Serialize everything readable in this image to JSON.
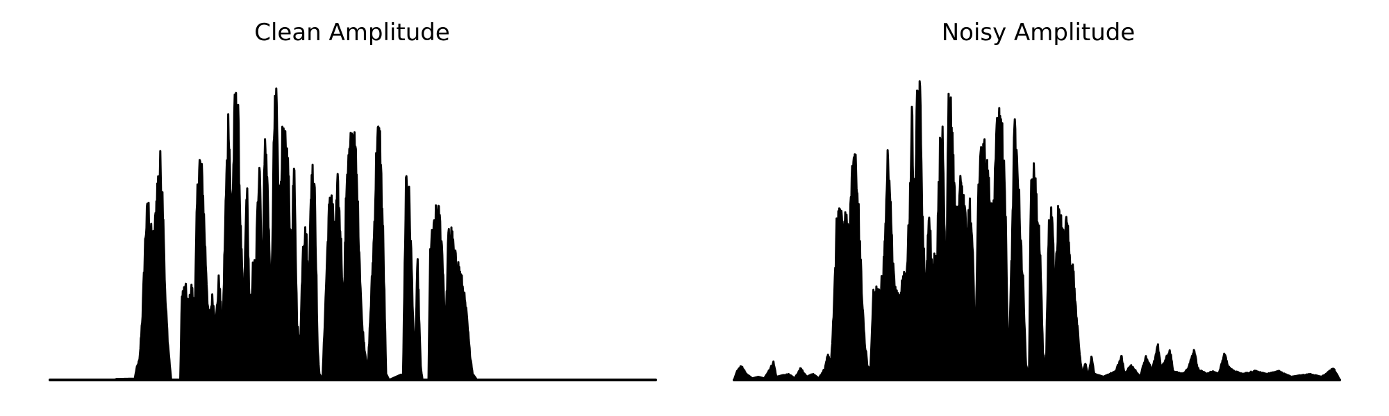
{
  "chart_data": [
    {
      "type": "area",
      "title": "Clean Amplitude",
      "xlabel": "",
      "ylabel": "",
      "axes_visible": false,
      "grid": false,
      "color": "#000000",
      "ylim": [
        0,
        1
      ],
      "envelope": [
        [
          0.0,
          0.0
        ],
        [
          0.08,
          0.0
        ],
        [
          0.105,
          0.0
        ],
        [
          0.11,
          0.003
        ],
        [
          0.14,
          0.004
        ],
        [
          0.143,
          0.04
        ],
        [
          0.148,
          0.07
        ],
        [
          0.153,
          0.24
        ],
        [
          0.158,
          0.52
        ],
        [
          0.162,
          0.6
        ],
        [
          0.167,
          0.5
        ],
        [
          0.172,
          0.48
        ],
        [
          0.177,
          0.66
        ],
        [
          0.182,
          0.74
        ],
        [
          0.187,
          0.6
        ],
        [
          0.19,
          0.3
        ],
        [
          0.195,
          0.12
        ],
        [
          0.2,
          0.0
        ],
        [
          0.215,
          0.0
        ],
        [
          0.218,
          0.3
        ],
        [
          0.224,
          0.31
        ],
        [
          0.229,
          0.25
        ],
        [
          0.234,
          0.32
        ],
        [
          0.239,
          0.22
        ],
        [
          0.243,
          0.62
        ],
        [
          0.247,
          0.75
        ],
        [
          0.252,
          0.68
        ],
        [
          0.257,
          0.42
        ],
        [
          0.262,
          0.2
        ],
        [
          0.268,
          0.28
        ],
        [
          0.274,
          0.2
        ],
        [
          0.279,
          0.35
        ],
        [
          0.285,
          0.16
        ],
        [
          0.29,
          0.6
        ],
        [
          0.295,
          0.93
        ],
        [
          0.3,
          0.5
        ],
        [
          0.305,
          0.92
        ],
        [
          0.31,
          0.95
        ],
        [
          0.315,
          0.5
        ],
        [
          0.32,
          0.22
        ],
        [
          0.325,
          0.69
        ],
        [
          0.33,
          0.2
        ],
        [
          0.335,
          0.38
        ],
        [
          0.34,
          0.4
        ],
        [
          0.346,
          0.8
        ],
        [
          0.35,
          0.35
        ],
        [
          0.355,
          0.82
        ],
        [
          0.36,
          0.64
        ],
        [
          0.365,
          0.2
        ],
        [
          0.37,
          0.86
        ],
        [
          0.374,
          0.998
        ],
        [
          0.378,
          0.52
        ],
        [
          0.383,
          0.81
        ],
        [
          0.388,
          0.8
        ],
        [
          0.393,
          0.75
        ],
        [
          0.398,
          0.4
        ],
        [
          0.403,
          0.73
        ],
        [
          0.408,
          0.2
        ],
        [
          0.413,
          0.1
        ],
        [
          0.418,
          0.5
        ],
        [
          0.423,
          0.5
        ],
        [
          0.427,
          0.3
        ],
        [
          0.432,
          0.72
        ],
        [
          0.437,
          0.7
        ],
        [
          0.442,
          0.1
        ],
        [
          0.445,
          0.02
        ],
        [
          0.45,
          0.0
        ],
        [
          0.46,
          0.56
        ],
        [
          0.465,
          0.64
        ],
        [
          0.47,
          0.5
        ],
        [
          0.475,
          0.66
        ],
        [
          0.48,
          0.5
        ],
        [
          0.485,
          0.24
        ],
        [
          0.49,
          0.72
        ],
        [
          0.495,
          0.78
        ],
        [
          0.5,
          0.84
        ],
        [
          0.505,
          0.76
        ],
        [
          0.51,
          0.5
        ],
        [
          0.515,
          0.2
        ],
        [
          0.52,
          0.1
        ],
        [
          0.525,
          0.04
        ],
        [
          0.535,
          0.5
        ],
        [
          0.54,
          0.84
        ],
        [
          0.545,
          0.82
        ],
        [
          0.55,
          0.5
        ],
        [
          0.555,
          0.02
        ],
        [
          0.56,
          0.0
        ],
        [
          0.583,
          0.02
        ],
        [
          0.588,
          0.71
        ],
        [
          0.593,
          0.62
        ],
        [
          0.597,
          0.4
        ],
        [
          0.602,
          0.04
        ],
        [
          0.607,
          0.4
        ],
        [
          0.612,
          0.05
        ],
        [
          0.615,
          0.0
        ],
        [
          0.625,
          0.0
        ],
        [
          0.628,
          0.46
        ],
        [
          0.633,
          0.5
        ],
        [
          0.638,
          0.57
        ],
        [
          0.643,
          0.56
        ],
        [
          0.648,
          0.44
        ],
        [
          0.653,
          0.15
        ],
        [
          0.658,
          0.5
        ],
        [
          0.663,
          0.5
        ],
        [
          0.668,
          0.42
        ],
        [
          0.673,
          0.4
        ],
        [
          0.678,
          0.36
        ],
        [
          0.683,
          0.3
        ],
        [
          0.688,
          0.22
        ],
        [
          0.693,
          0.1
        ],
        [
          0.698,
          0.02
        ],
        [
          0.705,
          0.0
        ],
        [
          1.0,
          0.0
        ]
      ]
    },
    {
      "type": "area",
      "title": "Noisy Amplitude",
      "xlabel": "",
      "ylabel": "",
      "axes_visible": false,
      "grid": false,
      "color": "#000000",
      "ylim": [
        0,
        1
      ],
      "envelope": [
        [
          0.0,
          0.0
        ],
        [
          0.005,
          0.03
        ],
        [
          0.012,
          0.05
        ],
        [
          0.02,
          0.02
        ],
        [
          0.03,
          0.005
        ],
        [
          0.04,
          0.01
        ],
        [
          0.05,
          0.005
        ],
        [
          0.06,
          0.04
        ],
        [
          0.065,
          0.06
        ],
        [
          0.07,
          0.01
        ],
        [
          0.09,
          0.02
        ],
        [
          0.1,
          0.005
        ],
        [
          0.11,
          0.04
        ],
        [
          0.12,
          0.01
        ],
        [
          0.13,
          0.02
        ],
        [
          0.14,
          0.005
        ],
        [
          0.15,
          0.04
        ],
        [
          0.155,
          0.09
        ],
        [
          0.16,
          0.05
        ],
        [
          0.165,
          0.25
        ],
        [
          0.17,
          0.56
        ],
        [
          0.175,
          0.58
        ],
        [
          0.18,
          0.52
        ],
        [
          0.185,
          0.55
        ],
        [
          0.19,
          0.5
        ],
        [
          0.195,
          0.7
        ],
        [
          0.2,
          0.75
        ],
        [
          0.205,
          0.6
        ],
        [
          0.21,
          0.35
        ],
        [
          0.215,
          0.15
        ],
        [
          0.22,
          0.05
        ],
        [
          0.225,
          0.03
        ],
        [
          0.23,
          0.3
        ],
        [
          0.236,
          0.31
        ],
        [
          0.241,
          0.3
        ],
        [
          0.246,
          0.36
        ],
        [
          0.25,
          0.5
        ],
        [
          0.254,
          0.76
        ],
        [
          0.258,
          0.6
        ],
        [
          0.262,
          0.4
        ],
        [
          0.266,
          0.3
        ],
        [
          0.27,
          0.28
        ],
        [
          0.275,
          0.3
        ],
        [
          0.28,
          0.36
        ],
        [
          0.285,
          0.36
        ],
        [
          0.29,
          0.6
        ],
        [
          0.294,
          0.91
        ],
        [
          0.298,
          0.5
        ],
        [
          0.302,
          0.92
        ],
        [
          0.307,
          0.97
        ],
        [
          0.312,
          0.5
        ],
        [
          0.317,
          0.3
        ],
        [
          0.322,
          0.62
        ],
        [
          0.326,
          0.4
        ],
        [
          0.33,
          0.4
        ],
        [
          0.335,
          0.42
        ],
        [
          0.34,
          0.8
        ],
        [
          0.345,
          0.85
        ],
        [
          0.35,
          0.2
        ],
        [
          0.354,
          0.97
        ],
        [
          0.359,
          0.89
        ],
        [
          0.364,
          0.62
        ],
        [
          0.369,
          0.54
        ],
        [
          0.374,
          0.72
        ],
        [
          0.379,
          0.6
        ],
        [
          0.384,
          0.5
        ],
        [
          0.389,
          0.6
        ],
        [
          0.394,
          0.5
        ],
        [
          0.398,
          0.05
        ],
        [
          0.403,
          0.64
        ],
        [
          0.408,
          0.78
        ],
        [
          0.413,
          0.8
        ],
        [
          0.418,
          0.7
        ],
        [
          0.423,
          0.6
        ],
        [
          0.428,
          0.55
        ],
        [
          0.433,
          0.82
        ],
        [
          0.438,
          0.88
        ],
        [
          0.443,
          0.84
        ],
        [
          0.448,
          0.62
        ],
        [
          0.453,
          0.05
        ],
        [
          0.458,
          0.4
        ],
        [
          0.463,
          0.86
        ],
        [
          0.468,
          0.8
        ],
        [
          0.473,
          0.5
        ],
        [
          0.478,
          0.3
        ],
        [
          0.482,
          0.05
        ],
        [
          0.487,
          0.02
        ],
        [
          0.49,
          0.63
        ],
        [
          0.495,
          0.7
        ],
        [
          0.5,
          0.6
        ],
        [
          0.505,
          0.45
        ],
        [
          0.51,
          0.1
        ],
        [
          0.515,
          0.04
        ],
        [
          0.52,
          0.57
        ],
        [
          0.525,
          0.55
        ],
        [
          0.53,
          0.3
        ],
        [
          0.535,
          0.56
        ],
        [
          0.54,
          0.53
        ],
        [
          0.545,
          0.5
        ],
        [
          0.55,
          0.54
        ],
        [
          0.555,
          0.38
        ],
        [
          0.56,
          0.38
        ],
        [
          0.565,
          0.24
        ],
        [
          0.57,
          0.1
        ],
        [
          0.575,
          0.02
        ],
        [
          0.58,
          0.06
        ],
        [
          0.585,
          0.01
        ],
        [
          0.59,
          0.08
        ],
        [
          0.595,
          0.02
        ],
        [
          0.61,
          0.01
        ],
        [
          0.63,
          0.03
        ],
        [
          0.64,
          0.08
        ],
        [
          0.645,
          0.02
        ],
        [
          0.655,
          0.05
        ],
        [
          0.66,
          0.04
        ],
        [
          0.67,
          0.01
        ],
        [
          0.68,
          0.08
        ],
        [
          0.685,
          0.06
        ],
        [
          0.69,
          0.03
        ],
        [
          0.7,
          0.12
        ],
        [
          0.705,
          0.04
        ],
        [
          0.72,
          0.1
        ],
        [
          0.725,
          0.03
        ],
        [
          0.74,
          0.02
        ],
        [
          0.75,
          0.04
        ],
        [
          0.76,
          0.1
        ],
        [
          0.765,
          0.04
        ],
        [
          0.78,
          0.02
        ],
        [
          0.79,
          0.03
        ],
        [
          0.8,
          0.02
        ],
        [
          0.81,
          0.09
        ],
        [
          0.815,
          0.05
        ],
        [
          0.825,
          0.03
        ],
        [
          0.84,
          0.02
        ],
        [
          0.86,
          0.03
        ],
        [
          0.88,
          0.02
        ],
        [
          0.9,
          0.03
        ],
        [
          0.92,
          0.01
        ],
        [
          0.95,
          0.02
        ],
        [
          0.97,
          0.01
        ],
        [
          0.99,
          0.04
        ],
        [
          1.0,
          0.0
        ]
      ]
    }
  ]
}
